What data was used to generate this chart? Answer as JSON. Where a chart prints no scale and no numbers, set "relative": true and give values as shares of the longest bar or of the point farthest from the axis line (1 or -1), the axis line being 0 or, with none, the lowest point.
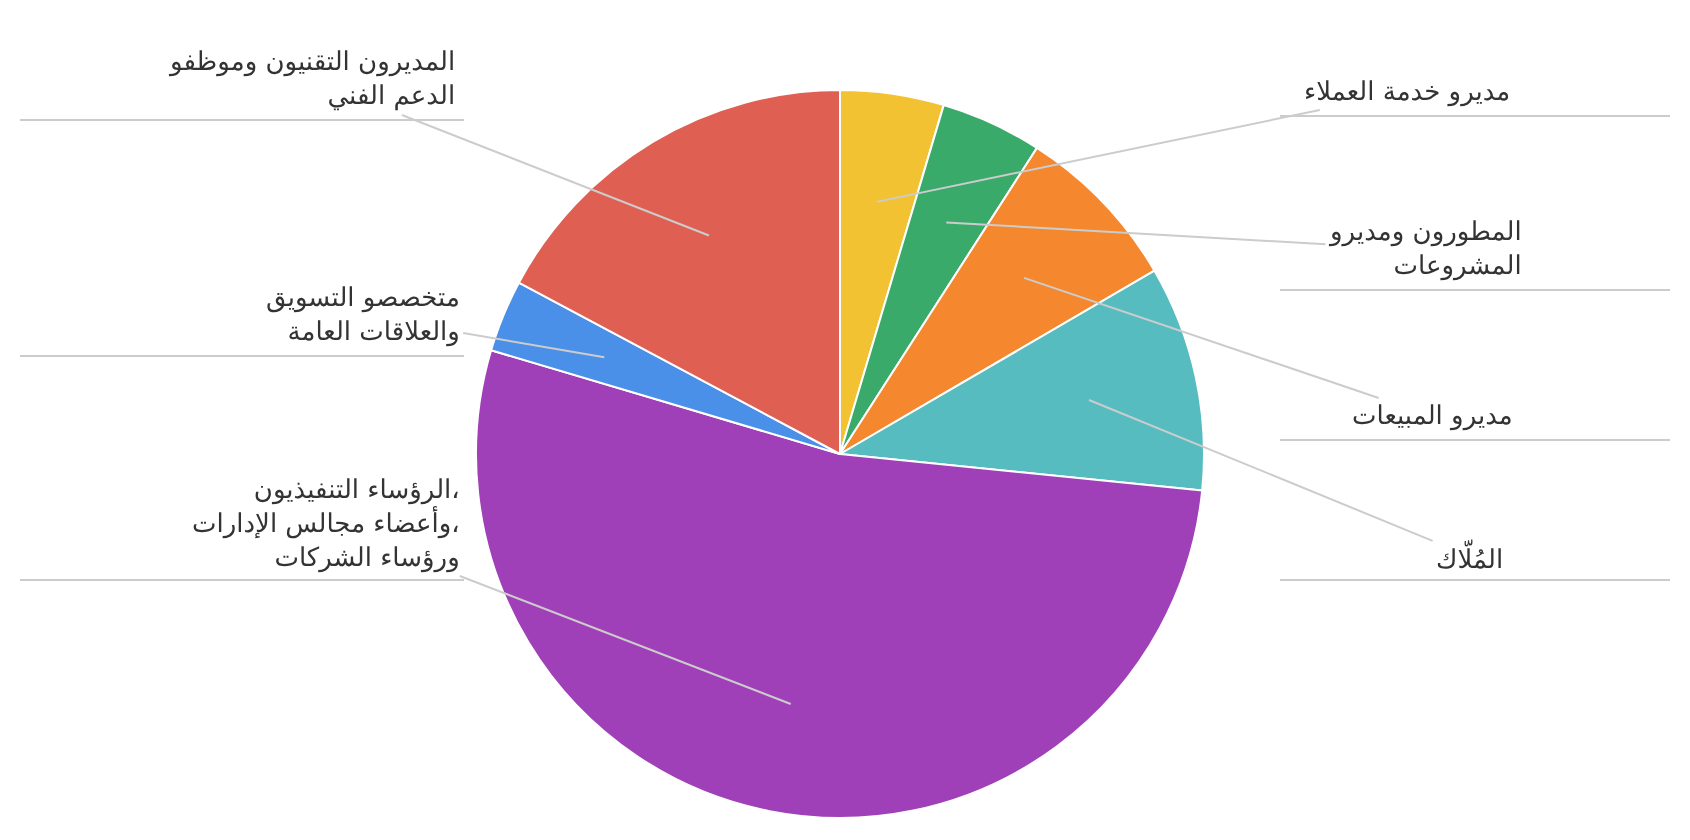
{
  "chart_data": {
    "type": "pie",
    "relative": true,
    "categories": [
      "مديرو خدمة العملاء",
      "المطورون ومديرو\nالمشروعات",
      "مديرو المبيعات",
      "المُلّاك",
      "الرؤساء التنفيذيون،\nوأعضاء مجالس الإدارات،\nورؤساء الشركات",
      "متخصصو التسويق\nوالعلاقات العامة",
      "المديرون التقنيون وموظفو\nالدعم الفني"
    ],
    "values": [
      4.6,
      4.5,
      7.5,
      10,
      53,
      3.2,
      17.2
    ],
    "colors": [
      "#f2c233",
      "#3aaa6a",
      "#f5872e",
      "#56bcc0",
      "#a040b8",
      "#4a8fe8",
      "#df5f52"
    ],
    "legend": false
  }
}
